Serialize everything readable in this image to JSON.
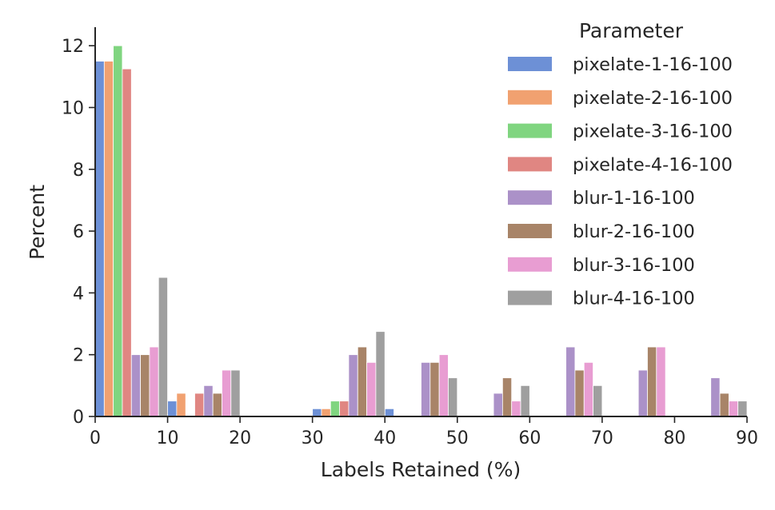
{
  "chart_data": {
    "type": "bar",
    "xlabel": "Labels Retained (%)",
    "ylabel": "Percent",
    "xlim": [
      0,
      90
    ],
    "ylim": [
      0,
      12.6
    ],
    "xticks": [
      0,
      10,
      20,
      30,
      40,
      50,
      60,
      70,
      80,
      90
    ],
    "yticks": [
      0,
      2,
      4,
      6,
      8,
      10,
      12
    ],
    "bin_edges": [
      0,
      10,
      20,
      30,
      40,
      50,
      60,
      70,
      80,
      90
    ],
    "legend": {
      "title": "Parameter",
      "location": "top-right"
    },
    "grid": false,
    "series": [
      {
        "name": "pixelate-1-16-100",
        "color": "#6d90d6",
        "values": [
          11.5,
          0.5,
          0,
          0.25,
          0.25,
          0,
          0,
          0,
          0
        ]
      },
      {
        "name": "pixelate-2-16-100",
        "color": "#f1a170",
        "values": [
          11.5,
          0.75,
          0,
          0.25,
          0,
          0,
          0,
          0,
          0
        ]
      },
      {
        "name": "pixelate-3-16-100",
        "color": "#80d580",
        "values": [
          12.0,
          0,
          0,
          0.5,
          0,
          0,
          0,
          0,
          0
        ]
      },
      {
        "name": "pixelate-4-16-100",
        "color": "#e08682",
        "values": [
          11.25,
          0.75,
          0,
          0.5,
          0,
          0,
          0,
          0,
          0
        ]
      },
      {
        "name": "blur-1-16-100",
        "color": "#ab91c8",
        "values": [
          2.0,
          1.0,
          0,
          2.0,
          1.75,
          0.75,
          2.25,
          1.5,
          1.25
        ]
      },
      {
        "name": "blur-2-16-100",
        "color": "#a88468",
        "values": [
          2.0,
          0.75,
          0,
          2.25,
          1.75,
          1.25,
          1.5,
          2.25,
          0.75
        ]
      },
      {
        "name": "blur-3-16-100",
        "color": "#e89dd2",
        "values": [
          2.25,
          1.5,
          0,
          1.75,
          2.0,
          0.5,
          1.75,
          2.25,
          0.5
        ]
      },
      {
        "name": "blur-4-16-100",
        "color": "#9f9f9f",
        "values": [
          4.5,
          1.5,
          0,
          2.75,
          1.25,
          1.0,
          1.0,
          0,
          0.5
        ]
      }
    ]
  }
}
